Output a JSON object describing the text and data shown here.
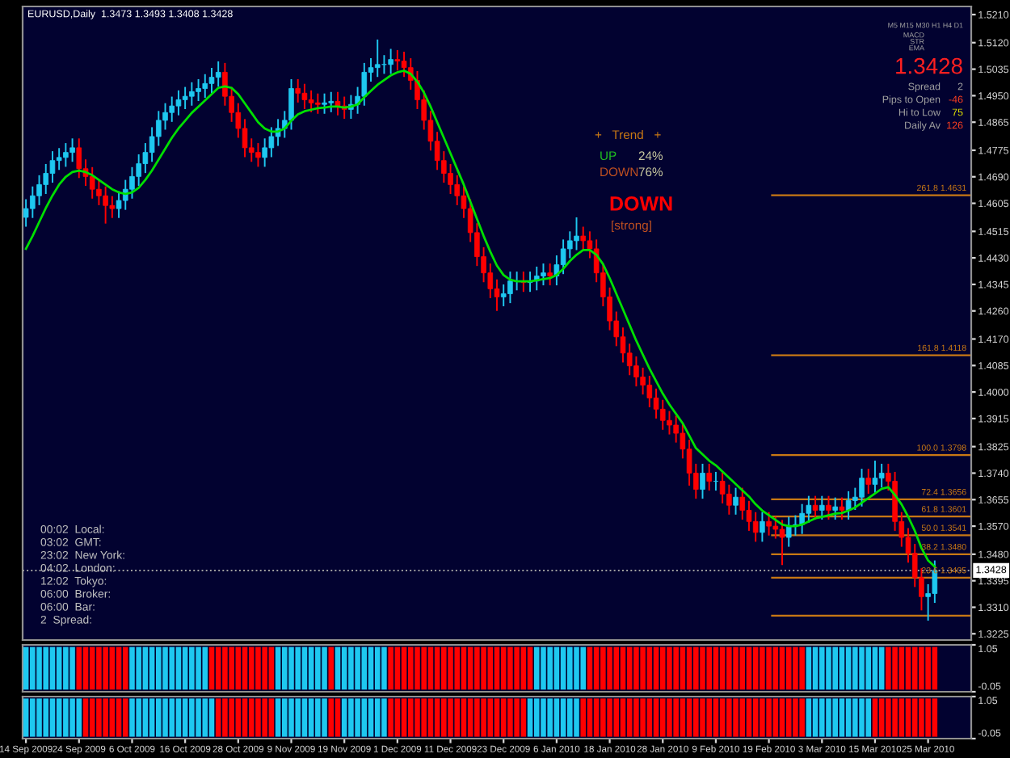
{
  "chart_data": [
    {
      "type": "candlestick",
      "tick_labels": "y",
      "colors": [
        "#1ec8f0",
        "#1ec8f0",
        "#1ec8f0",
        "#1ec8f0",
        "#1ec8f0",
        "#1ec8f0",
        "#1ec8f0",
        "#1ec8f0",
        "#ff0000",
        "#ff0000",
        "#ff0000",
        "#ff0000",
        "#ff0000",
        "#ff0000",
        "#1ec8f0",
        "#1ec8f0",
        "#1ec8f0",
        "#1ec8f0",
        "#1ec8f0",
        "#1ec8f0",
        "#1ec8f0",
        "#1ec8f0",
        "#1ec8f0",
        "#1ec8f0",
        "#1ec8f0",
        "#1ec8f0",
        "#1ec8f0",
        "#1ec8f0",
        "#1ec8f0",
        "#1ec8f0",
        "#ff0000",
        "#ff0000",
        "#ff0000",
        "#ff0000",
        "#ff0000",
        "#ff0000",
        "#1ec8f0",
        "#1ec8f0",
        "#1ec8f0",
        "#1ec8f0",
        "#1ec8f0",
        "#ff0000",
        "#ff0000",
        "#ff0000",
        "#ff0000",
        "#1ec8f0",
        "#1ec8f0",
        "#ff0000",
        "#ff0000",
        "#1ec8f0",
        "#1ec8f0",
        "#1ec8f0",
        "#1ec8f0",
        "#1ec8f0",
        "#1ec8f0",
        "#1ec8f0",
        "#ff0000",
        "#ff0000",
        "#ff0000",
        "#ff0000",
        "#ff0000",
        "#ff0000",
        "#ff0000",
        "#ff0000",
        "#ff0000",
        "#ff0000",
        "#ff0000",
        "#ff0000",
        "#ff0000",
        "#ff0000",
        "#ff0000",
        "#ff0000",
        "#1ec8f0",
        "#1ec8f0",
        "#1ec8f0",
        "#ff0000",
        "#1ec8f0",
        "#1ec8f0",
        "#1ec8f0",
        "#ff0000",
        "#1ec8f0",
        "#1ec8f0",
        "#1ec8f0",
        "#1ec8f0",
        "#ff0000",
        "#ff0000",
        "#ff0000",
        "#ff0000",
        "#ff0000",
        "#ff0000",
        "#ff0000",
        "#ff0000",
        "#ff0000",
        "#ff0000",
        "#ff0000",
        "#ff0000",
        "#ff0000",
        "#ff0000",
        "#ff0000",
        "#ff0000",
        "#ff0000",
        "#ff0000",
        "#1ec8f0",
        "#ff0000",
        "#1ec8f0",
        "#ff0000",
        "#ff0000",
        "#1ec8f0",
        "#ff0000",
        "#ff0000",
        "#ff0000",
        "#1ec8f0",
        "#ff0000",
        "#ff0000",
        "#ff0000",
        "#1ec8f0",
        "#1ec8f0",
        "#1ec8f0",
        "#1ec8f0",
        "#ff0000",
        "#1ec8f0",
        "#ff0000",
        "#1ec8f0",
        "#ff0000",
        "#1ec8f0",
        "#1ec8f0",
        "#1ec8f0",
        "#ff0000",
        "#1ec8f0",
        "#1ec8f0",
        "#ff0000",
        "#ff0000",
        "#ff0000",
        "#ff0000",
        "#ff0000",
        "#ff0000",
        "#1ec8f0",
        "#1ec8f0"
      ],
      "ohlc": [
        [
          1.456,
          1.4618,
          1.453,
          1.4588
        ],
        [
          1.4588,
          1.4659,
          1.4558,
          1.4629
        ],
        [
          1.4629,
          1.4695,
          1.4599,
          1.4665
        ],
        [
          1.4665,
          1.4731,
          1.4635,
          1.4701
        ],
        [
          1.4701,
          1.4772,
          1.4671,
          1.4742
        ],
        [
          1.4742,
          1.4782,
          1.4712,
          1.4752
        ],
        [
          1.4752,
          1.4798,
          1.4722,
          1.4768
        ],
        [
          1.4768,
          1.4813,
          1.4738,
          1.4783
        ],
        [
          1.4783,
          1.4813,
          1.4686,
          1.4716
        ],
        [
          1.4716,
          1.4746,
          1.4661,
          1.4691
        ],
        [
          1.4691,
          1.4721,
          1.462,
          1.465
        ],
        [
          1.465,
          1.468,
          1.4599,
          1.4629
        ],
        [
          1.4629,
          1.4659,
          1.454,
          1.4598
        ],
        [
          1.4598,
          1.4628,
          1.4558,
          1.4588
        ],
        [
          1.4588,
          1.4644,
          1.4558,
          1.4614
        ],
        [
          1.4614,
          1.468,
          1.4584,
          1.465
        ],
        [
          1.465,
          1.4721,
          1.462,
          1.4691
        ],
        [
          1.4691,
          1.4762,
          1.4661,
          1.4732
        ],
        [
          1.4732,
          1.4798,
          1.4702,
          1.4768
        ],
        [
          1.4768,
          1.4849,
          1.4738,
          1.4819
        ],
        [
          1.4819,
          1.4901,
          1.4789,
          1.4871
        ],
        [
          1.4871,
          1.4926,
          1.4841,
          1.4896
        ],
        [
          1.4896,
          1.4947,
          1.4866,
          1.4917
        ],
        [
          1.4917,
          1.4967,
          1.4887,
          1.4937
        ],
        [
          1.4937,
          1.4978,
          1.4907,
          1.4948
        ],
        [
          1.4948,
          1.4993,
          1.4918,
          1.4963
        ],
        [
          1.4963,
          1.5003,
          1.4933,
          1.4973
        ],
        [
          1.4973,
          1.5019,
          1.4943,
          1.4989
        ],
        [
          1.4989,
          1.5039,
          1.4959,
          1.5009
        ],
        [
          1.5009,
          1.506,
          1.4979,
          1.5025
        ],
        [
          1.5025,
          1.5055,
          1.4918,
          1.4948
        ],
        [
          1.4948,
          1.4978,
          1.4866,
          1.4896
        ],
        [
          1.4896,
          1.4926,
          1.4815,
          1.4845
        ],
        [
          1.4845,
          1.4875,
          1.4753,
          1.4783
        ],
        [
          1.4783,
          1.4813,
          1.4738,
          1.4768
        ],
        [
          1.4768,
          1.4798,
          1.4722,
          1.4752
        ],
        [
          1.4752,
          1.4813,
          1.4722,
          1.4783
        ],
        [
          1.4783,
          1.4849,
          1.4753,
          1.4819
        ],
        [
          1.4819,
          1.4875,
          1.4789,
          1.4845
        ],
        [
          1.4845,
          1.4901,
          1.4815,
          1.4871
        ],
        [
          1.4871,
          1.5003,
          1.4841,
          1.4973
        ],
        [
          1.4973,
          1.5003,
          1.4928,
          1.4958
        ],
        [
          1.4958,
          1.4988,
          1.4907,
          1.4937
        ],
        [
          1.4937,
          1.4967,
          1.4897,
          1.4927
        ],
        [
          1.4927,
          1.4957,
          1.4892,
          1.4922
        ],
        [
          1.4922,
          1.4957,
          1.4892,
          1.4927
        ],
        [
          1.4927,
          1.4962,
          1.4897,
          1.4932
        ],
        [
          1.4932,
          1.4962,
          1.4887,
          1.4917
        ],
        [
          1.4917,
          1.4947,
          1.4876,
          1.4906
        ],
        [
          1.4906,
          1.4952,
          1.4876,
          1.4922
        ],
        [
          1.4922,
          1.4978,
          1.4892,
          1.4948
        ],
        [
          1.4948,
          1.5055,
          1.4918,
          1.5025
        ],
        [
          1.5025,
          1.507,
          1.4995,
          1.504
        ],
        [
          1.504,
          1.513,
          1.501,
          1.505
        ],
        [
          1.505,
          1.508,
          1.502,
          1.505
        ],
        [
          1.505,
          1.51,
          1.502,
          1.5066
        ],
        [
          1.5066,
          1.5096,
          1.5031,
          1.5061
        ],
        [
          1.5061,
          1.5091,
          1.501,
          1.504
        ],
        [
          1.504,
          1.507,
          1.4969,
          1.4999
        ],
        [
          1.4999,
          1.5029,
          1.4907,
          1.4937
        ],
        [
          1.4937,
          1.4967,
          1.4841,
          1.4871
        ],
        [
          1.4871,
          1.4901,
          1.4774,
          1.4804
        ],
        [
          1.4804,
          1.4834,
          1.4712,
          1.4742
        ],
        [
          1.4742,
          1.4772,
          1.4671,
          1.4701
        ],
        [
          1.4701,
          1.4731,
          1.4635,
          1.4665
        ],
        [
          1.4665,
          1.4695,
          1.4599,
          1.4629
        ],
        [
          1.4629,
          1.4659,
          1.4558,
          1.4588
        ],
        [
          1.4588,
          1.4618,
          1.4481,
          1.4511
        ],
        [
          1.4511,
          1.4541,
          1.4404,
          1.4434
        ],
        [
          1.4434,
          1.4464,
          1.4352,
          1.4382
        ],
        [
          1.4382,
          1.4412,
          1.4301,
          1.4331
        ],
        [
          1.4331,
          1.4361,
          1.426,
          1.4305
        ],
        [
          1.4305,
          1.4345,
          1.4275,
          1.4315
        ],
        [
          1.4315,
          1.4386,
          1.4285,
          1.4356
        ],
        [
          1.4356,
          1.4386,
          1.4326,
          1.4356
        ],
        [
          1.4356,
          1.4386,
          1.4321,
          1.4351
        ],
        [
          1.4351,
          1.4386,
          1.4321,
          1.4356
        ],
        [
          1.4356,
          1.4402,
          1.4326,
          1.4372
        ],
        [
          1.4372,
          1.4412,
          1.4342,
          1.4382
        ],
        [
          1.4382,
          1.4412,
          1.4342,
          1.4372
        ],
        [
          1.4372,
          1.4438,
          1.4342,
          1.4408
        ],
        [
          1.4408,
          1.4489,
          1.4378,
          1.4459
        ],
        [
          1.4459,
          1.4515,
          1.4429,
          1.4485
        ],
        [
          1.4485,
          1.456,
          1.4455,
          1.45
        ],
        [
          1.45,
          1.453,
          1.4455,
          1.4485
        ],
        [
          1.4485,
          1.4515,
          1.4429,
          1.4459
        ],
        [
          1.4459,
          1.4489,
          1.4352,
          1.4382
        ],
        [
          1.4382,
          1.4412,
          1.4275,
          1.4305
        ],
        [
          1.4305,
          1.4335,
          1.4198,
          1.4228
        ],
        [
          1.4228,
          1.4258,
          1.4147,
          1.4177
        ],
        [
          1.4177,
          1.4207,
          1.4095,
          1.4125
        ],
        [
          1.4125,
          1.4155,
          1.4054,
          1.4084
        ],
        [
          1.4084,
          1.4114,
          1.4018,
          1.4048
        ],
        [
          1.4048,
          1.4078,
          1.3992,
          1.4022
        ],
        [
          1.4022,
          1.4052,
          1.3951,
          1.3981
        ],
        [
          1.3981,
          1.4011,
          1.3915,
          1.3945
        ],
        [
          1.3945,
          1.3975,
          1.3879,
          1.3909
        ],
        [
          1.3909,
          1.3939,
          1.3864,
          1.3894
        ],
        [
          1.3894,
          1.3924,
          1.3838,
          1.3868
        ],
        [
          1.3868,
          1.3898,
          1.3787,
          1.3817
        ],
        [
          1.3817,
          1.3847,
          1.37,
          1.374
        ],
        [
          1.374,
          1.377,
          1.3658,
          1.3688
        ],
        [
          1.3688,
          1.377,
          1.3658,
          1.374
        ],
        [
          1.374,
          1.377,
          1.3684,
          1.3714
        ],
        [
          1.3714,
          1.3744,
          1.3684,
          1.3714
        ],
        [
          1.3714,
          1.3744,
          1.3643,
          1.3673
        ],
        [
          1.3673,
          1.3703,
          1.3607,
          1.3637
        ],
        [
          1.3637,
          1.3693,
          1.3607,
          1.3663
        ],
        [
          1.3663,
          1.3693,
          1.3591,
          1.3621
        ],
        [
          1.3621,
          1.3651,
          1.3555,
          1.3585
        ],
        [
          1.3585,
          1.3615,
          1.352,
          1.355
        ],
        [
          1.355,
          1.3615,
          1.352,
          1.3585
        ],
        [
          1.3585,
          1.3615,
          1.354,
          1.357
        ],
        [
          1.357,
          1.36,
          1.353,
          1.356
        ],
        [
          1.356,
          1.359,
          1.3445,
          1.3534
        ],
        [
          1.3534,
          1.36,
          1.3504,
          1.357
        ],
        [
          1.357,
          1.3605,
          1.354,
          1.3575
        ],
        [
          1.3575,
          1.3641,
          1.3545,
          1.3611
        ],
        [
          1.3611,
          1.3667,
          1.3581,
          1.3637
        ],
        [
          1.3637,
          1.3667,
          1.3591,
          1.3621
        ],
        [
          1.3621,
          1.3667,
          1.3591,
          1.3637
        ],
        [
          1.3637,
          1.3667,
          1.3591,
          1.3621
        ],
        [
          1.3621,
          1.3662,
          1.3591,
          1.3632
        ],
        [
          1.3632,
          1.3662,
          1.3591,
          1.3621
        ],
        [
          1.3621,
          1.3682,
          1.3591,
          1.3652
        ],
        [
          1.3652,
          1.3693,
          1.3622,
          1.3663
        ],
        [
          1.3663,
          1.3754,
          1.3633,
          1.3724
        ],
        [
          1.3724,
          1.3754,
          1.3674,
          1.3704
        ],
        [
          1.3704,
          1.378,
          1.3674,
          1.3724
        ],
        [
          1.3724,
          1.377,
          1.3694,
          1.374
        ],
        [
          1.374,
          1.377,
          1.3684,
          1.3714
        ],
        [
          1.3714,
          1.3744,
          1.3555,
          1.3585
        ],
        [
          1.3585,
          1.3615,
          1.3504,
          1.3534
        ],
        [
          1.3534,
          1.3564,
          1.3453,
          1.3483
        ],
        [
          1.3483,
          1.3513,
          1.3375,
          1.3405
        ],
        [
          1.3405,
          1.3435,
          1.33,
          1.3344
        ],
        [
          1.3344,
          1.3384,
          1.3267,
          1.3354
        ],
        [
          1.3354,
          1.346,
          1.3324,
          1.3428
        ]
      ],
      "series": [
        {
          "type": "line",
          "color": "#00e000",
          "values": [
            1.4459,
            1.45,
            1.4545,
            1.459,
            1.463,
            1.4665,
            1.469,
            1.4705,
            1.471,
            1.4705,
            1.4695,
            1.468,
            1.4665,
            1.465,
            1.464,
            1.4635,
            1.464,
            1.4655,
            1.468,
            1.471,
            1.4745,
            1.478,
            1.4815,
            1.4845,
            1.487,
            1.4895,
            1.4915,
            1.4935,
            1.4955,
            1.4975,
            1.498,
            1.4975,
            1.4955,
            1.4925,
            1.4895,
            1.4865,
            1.4845,
            1.4835,
            1.4835,
            1.4845,
            1.487,
            1.489,
            1.49,
            1.4905,
            1.491,
            1.4912,
            1.4915,
            1.4915,
            1.4912,
            1.4915,
            1.4922,
            1.4945,
            1.4965,
            1.4985,
            1.5,
            1.5015,
            1.5025,
            1.503,
            1.502,
            1.4995,
            1.496,
            1.4915,
            1.4865,
            1.4815,
            1.4765,
            1.4715,
            1.4665,
            1.461,
            1.4555,
            1.45,
            1.445,
            1.4405,
            1.4375,
            1.436,
            1.4355,
            1.4355,
            1.4355,
            1.4358,
            1.4362,
            1.4365,
            1.4375,
            1.4395,
            1.442,
            1.444,
            1.4455,
            1.4455,
            1.444,
            1.441,
            1.4365,
            1.4315,
            1.4265,
            1.4215,
            1.4165,
            1.412,
            1.4075,
            1.4035,
            1.3995,
            1.396,
            1.393,
            1.39,
            1.386,
            1.382,
            1.38,
            1.378,
            1.3765,
            1.3745,
            1.3725,
            1.3705,
            1.3685,
            1.3665,
            1.364,
            1.362,
            1.3605,
            1.359,
            1.3575,
            1.357,
            1.357,
            1.3575,
            1.3585,
            1.3595,
            1.36,
            1.3605,
            1.361,
            1.3612,
            1.362,
            1.363,
            1.3645,
            1.366,
            1.3675,
            1.369,
            1.3695,
            1.367,
            1.364,
            1.36,
            1.3555,
            1.35,
            1.346,
            1.344
          ]
        }
      ],
      "ylim": [
        1.3205,
        1.5236
      ],
      "yticks": [
        {
          "value": 1.521,
          "label": "1.5210"
        },
        {
          "value": 1.512,
          "label": "1.5120"
        },
        1.5035,
        {
          "value": 1.495,
          "label": "1.4950"
        },
        1.4865,
        1.4775,
        {
          "value": 1.469,
          "label": "1.4690"
        },
        1.4605,
        1.4515,
        {
          "value": 1.443,
          "label": "1.4430"
        },
        1.4345,
        {
          "value": 1.426,
          "label": "1.4260"
        },
        {
          "value": 1.417,
          "label": "1.4170"
        },
        1.4085,
        {
          "value": 1.4,
          "label": "1.4000"
        },
        1.3915,
        1.3825,
        {
          "value": 1.374,
          "label": "1.3740"
        },
        1.3655,
        {
          "value": 1.357,
          "label": "1.3570"
        },
        {
          "value": 1.348,
          "label": "1.3480"
        },
        1.3395,
        {
          "value": 1.331,
          "label": "1.3310"
        },
        1.3225
      ],
      "ref_lines": [
        {
          "axis": "y",
          "value": 1.4631,
          "label": "261.8 1.4631",
          "color": "#c87814"
        },
        {
          "axis": "y",
          "value": 1.4118,
          "label": "161.8 1.4118",
          "color": "#c87814"
        },
        {
          "axis": "y",
          "value": 1.3798,
          "label": "100.0 1.3798",
          "color": "#c87814"
        },
        {
          "axis": "y",
          "value": 1.3656,
          "label": "72.4 1.3656",
          "color": "#c87814"
        },
        {
          "axis": "y",
          "value": 1.3601,
          "label": "61.8 1.3601",
          "color": "#c87814"
        },
        {
          "axis": "y",
          "value": 1.3541,
          "label": "50.0 1.3541",
          "color": "#c87814"
        },
        {
          "axis": "y",
          "value": 1.348,
          "label": "38.2 1.3480",
          "color": "#c87814"
        },
        {
          "axis": "y",
          "value": 1.3405,
          "label": "23.6 1.3405",
          "color": "#c87814"
        },
        {
          "axis": "y",
          "value": 1.3283,
          "color": "#c87814"
        },
        {
          "axis": "y",
          "value": 1.3428,
          "label": "1.3428",
          "color": "#a0a0a0",
          "line_style": "dotted"
        }
      ],
      "annotations": [
        "EURUSD,Daily  1.3473 1.3493 1.3408 1.3428",
        "+   Trend   +",
        "UP",
        "24%",
        "DOWN",
        "76%",
        "DOWN",
        "[strong]",
        "M5 M15 M30 H1 H4 D1",
        "MACD",
        "STR",
        "EMA",
        "1.3428",
        "Spread",
        "2",
        "Pips to Open",
        "-46",
        "Hi to Low",
        "75",
        "Daily Av",
        "126",
        "00:02  Local:",
        "03:02  GMT:",
        "23:02  New York:",
        "04:02  London:",
        "12:02  Tokyo:",
        "06:00  Broker:",
        "06:00  Bar:",
        "2  Spread:"
      ]
    },
    {
      "type": "bar",
      "tick_labels": "y",
      "ylim": [
        -0.05,
        1.05
      ],
      "yticks": [
        1.05,
        -0.05
      ],
      "values": [
        1,
        1,
        1,
        1,
        1,
        1,
        1,
        1,
        1,
        1,
        1,
        1,
        1,
        1,
        1,
        1,
        1,
        1,
        1,
        1,
        1,
        1,
        1,
        1,
        1,
        1,
        1,
        1,
        1,
        1,
        1,
        1,
        1,
        1,
        1,
        1,
        1,
        1,
        1,
        1,
        1,
        1,
        1,
        1,
        1,
        1,
        1,
        1,
        1,
        1,
        1,
        1,
        1,
        1,
        1,
        1,
        1,
        1,
        1,
        1,
        1,
        1,
        1,
        1,
        1,
        1,
        1,
        1,
        1,
        1,
        1,
        1,
        1,
        1,
        1,
        1,
        1,
        1,
        1,
        1,
        1,
        1,
        1,
        1,
        1,
        1,
        1,
        1,
        1,
        1,
        1,
        1,
        1,
        1,
        1,
        1,
        1,
        1,
        1,
        1,
        1,
        1,
        1,
        1,
        1,
        1,
        1,
        1,
        1,
        1,
        1,
        1,
        1,
        1,
        1,
        1,
        1,
        1,
        1,
        1,
        1,
        1,
        1,
        1,
        1,
        1,
        1,
        1,
        1,
        1,
        1,
        1,
        1,
        1,
        1,
        1,
        1,
        1
      ],
      "colors": [
        "#1ec8f0",
        "#1ec8f0",
        "#1ec8f0",
        "#1ec8f0",
        "#1ec8f0",
        "#1ec8f0",
        "#1ec8f0",
        "#1ec8f0",
        "#ff0000",
        "#ff0000",
        "#ff0000",
        "#ff0000",
        "#ff0000",
        "#ff0000",
        "#ff0000",
        "#ff0000",
        "#1ec8f0",
        "#1ec8f0",
        "#1ec8f0",
        "#1ec8f0",
        "#1ec8f0",
        "#1ec8f0",
        "#1ec8f0",
        "#1ec8f0",
        "#1ec8f0",
        "#1ec8f0",
        "#1ec8f0",
        "#1ec8f0",
        "#ff0000",
        "#ff0000",
        "#ff0000",
        "#ff0000",
        "#ff0000",
        "#ff0000",
        "#ff0000",
        "#ff0000",
        "#ff0000",
        "#ff0000",
        "#1ec8f0",
        "#1ec8f0",
        "#1ec8f0",
        "#1ec8f0",
        "#1ec8f0",
        "#1ec8f0",
        "#1ec8f0",
        "#1ec8f0",
        "#ff0000",
        "#1ec8f0",
        "#1ec8f0",
        "#1ec8f0",
        "#1ec8f0",
        "#1ec8f0",
        "#1ec8f0",
        "#1ec8f0",
        "#1ec8f0",
        "#ff0000",
        "#ff0000",
        "#ff0000",
        "#ff0000",
        "#ff0000",
        "#ff0000",
        "#ff0000",
        "#ff0000",
        "#ff0000",
        "#ff0000",
        "#ff0000",
        "#ff0000",
        "#ff0000",
        "#ff0000",
        "#ff0000",
        "#ff0000",
        "#ff0000",
        "#ff0000",
        "#ff0000",
        "#ff0000",
        "#ff0000",
        "#ff0000",
        "#1ec8f0",
        "#1ec8f0",
        "#1ec8f0",
        "#1ec8f0",
        "#1ec8f0",
        "#1ec8f0",
        "#1ec8f0",
        "#1ec8f0",
        "#ff0000",
        "#ff0000",
        "#ff0000",
        "#ff0000",
        "#ff0000",
        "#ff0000",
        "#ff0000",
        "#ff0000",
        "#ff0000",
        "#ff0000",
        "#ff0000",
        "#ff0000",
        "#ff0000",
        "#ff0000",
        "#ff0000",
        "#ff0000",
        "#ff0000",
        "#ff0000",
        "#ff0000",
        "#ff0000",
        "#ff0000",
        "#ff0000",
        "#ff0000",
        "#ff0000",
        "#ff0000",
        "#ff0000",
        "#ff0000",
        "#ff0000",
        "#ff0000",
        "#ff0000",
        "#ff0000",
        "#ff0000",
        "#ff0000",
        "#1ec8f0",
        "#1ec8f0",
        "#1ec8f0",
        "#1ec8f0",
        "#1ec8f0",
        "#1ec8f0",
        "#1ec8f0",
        "#1ec8f0",
        "#1ec8f0",
        "#1ec8f0",
        "#1ec8f0",
        "#1ec8f0",
        "#ff0000",
        "#ff0000",
        "#ff0000",
        "#ff0000",
        "#ff0000",
        "#ff0000",
        "#ff0000",
        "#ff0000"
      ]
    },
    {
      "type": "bar",
      "ylim": [
        -0.05,
        1.05
      ],
      "yticks": [
        1.05,
        -0.05
      ],
      "categories": [
        "14 Sep 2009",
        null,
        null,
        null,
        null,
        null,
        null,
        null,
        "24 Sep 2009",
        null,
        null,
        null,
        null,
        null,
        null,
        null,
        "6 Oct 2009",
        null,
        null,
        null,
        null,
        null,
        null,
        null,
        "16 Oct 2009",
        null,
        null,
        null,
        null,
        null,
        null,
        null,
        "28 Oct 2009",
        null,
        null,
        null,
        null,
        null,
        null,
        null,
        "9 Nov 2009",
        null,
        null,
        null,
        null,
        null,
        null,
        null,
        "19 Nov 2009",
        null,
        null,
        null,
        null,
        null,
        null,
        null,
        "1 Dec 2009",
        null,
        null,
        null,
        null,
        null,
        null,
        null,
        "11 Dec 2009",
        null,
        null,
        null,
        null,
        null,
        null,
        null,
        "23 Dec 2009",
        null,
        null,
        null,
        null,
        null,
        null,
        null,
        "6 Jan 2010",
        null,
        null,
        null,
        null,
        null,
        null,
        null,
        "18 Jan 2010",
        null,
        null,
        null,
        null,
        null,
        null,
        null,
        "28 Jan 2010",
        null,
        null,
        null,
        null,
        null,
        null,
        null,
        "9 Feb 2010",
        null,
        null,
        null,
        null,
        null,
        null,
        null,
        "19 Feb 2010",
        null,
        null,
        null,
        null,
        null,
        null,
        null,
        "3 Mar 2010",
        null,
        null,
        null,
        null,
        null,
        null,
        null,
        "15 Mar 2010",
        null,
        null,
        null,
        null,
        null,
        null,
        null,
        "25 Mar 2010",
        null
      ],
      "values": [
        1,
        1,
        1,
        1,
        1,
        1,
        1,
        1,
        1,
        1,
        1,
        1,
        1,
        1,
        1,
        1,
        1,
        1,
        1,
        1,
        1,
        1,
        1,
        1,
        1,
        1,
        1,
        1,
        1,
        1,
        1,
        1,
        1,
        1,
        1,
        1,
        1,
        1,
        1,
        1,
        1,
        1,
        1,
        1,
        1,
        1,
        1,
        1,
        1,
        1,
        1,
        1,
        1,
        1,
        1,
        1,
        1,
        1,
        1,
        1,
        1,
        1,
        1,
        1,
        1,
        1,
        1,
        1,
        1,
        1,
        1,
        1,
        1,
        1,
        1,
        1,
        1,
        1,
        1,
        1,
        1,
        1,
        1,
        1,
        1,
        1,
        1,
        1,
        1,
        1,
        1,
        1,
        1,
        1,
        1,
        1,
        1,
        1,
        1,
        1,
        1,
        1,
        1,
        1,
        1,
        1,
        1,
        1,
        1,
        1,
        1,
        1,
        1,
        1,
        1,
        1,
        1,
        1,
        1,
        1,
        1,
        1,
        1,
        1,
        1,
        1,
        1,
        1,
        1,
        1,
        1,
        1,
        1,
        1,
        1,
        1,
        1,
        1
      ],
      "colors": [
        "#1ec8f0",
        "#1ec8f0",
        "#1ec8f0",
        "#1ec8f0",
        "#1ec8f0",
        "#1ec8f0",
        "#1ec8f0",
        "#1ec8f0",
        "#1ec8f0",
        "#ff0000",
        "#ff0000",
        "#ff0000",
        "#ff0000",
        "#ff0000",
        "#ff0000",
        "#ff0000",
        "#1ec8f0",
        "#1ec8f0",
        "#1ec8f0",
        "#1ec8f0",
        "#1ec8f0",
        "#1ec8f0",
        "#1ec8f0",
        "#1ec8f0",
        "#1ec8f0",
        "#1ec8f0",
        "#1ec8f0",
        "#1ec8f0",
        "#1ec8f0",
        "#ff0000",
        "#ff0000",
        "#ff0000",
        "#ff0000",
        "#ff0000",
        "#ff0000",
        "#ff0000",
        "#ff0000",
        "#ff0000",
        "#1ec8f0",
        "#1ec8f0",
        "#1ec8f0",
        "#1ec8f0",
        "#1ec8f0",
        "#1ec8f0",
        "#1ec8f0",
        "#1ec8f0",
        "#ff0000",
        "#ff0000",
        "#1ec8f0",
        "#1ec8f0",
        "#1ec8f0",
        "#1ec8f0",
        "#1ec8f0",
        "#1ec8f0",
        "#1ec8f0",
        "#ff0000",
        "#ff0000",
        "#ff0000",
        "#ff0000",
        "#ff0000",
        "#ff0000",
        "#ff0000",
        "#ff0000",
        "#ff0000",
        "#ff0000",
        "#ff0000",
        "#ff0000",
        "#ff0000",
        "#ff0000",
        "#ff0000",
        "#ff0000",
        "#ff0000",
        "#ff0000",
        "#ff0000",
        "#ff0000",
        "#ff0000",
        "#1ec8f0",
        "#1ec8f0",
        "#1ec8f0",
        "#1ec8f0",
        "#1ec8f0",
        "#1ec8f0",
        "#1ec8f0",
        "#1ec8f0",
        "#ff0000",
        "#ff0000",
        "#ff0000",
        "#ff0000",
        "#ff0000",
        "#ff0000",
        "#ff0000",
        "#ff0000",
        "#ff0000",
        "#ff0000",
        "#ff0000",
        "#ff0000",
        "#ff0000",
        "#ff0000",
        "#ff0000",
        "#ff0000",
        "#ff0000",
        "#ff0000",
        "#ff0000",
        "#ff0000",
        "#ff0000",
        "#ff0000",
        "#ff0000",
        "#ff0000",
        "#ff0000",
        "#ff0000",
        "#ff0000",
        "#ff0000",
        "#ff0000",
        "#ff0000",
        "#ff0000",
        "#ff0000",
        "#ff0000",
        "#ff0000",
        "#1ec8f0",
        "#1ec8f0",
        "#1ec8f0",
        "#1ec8f0",
        "#1ec8f0",
        "#1ec8f0",
        "#1ec8f0",
        "#1ec8f0",
        "#1ec8f0",
        "#1ec8f0",
        "#ff0000",
        "#ff0000",
        "#ff0000",
        "#ff0000",
        "#ff0000",
        "#ff0000",
        "#ff0000",
        "#ff0000",
        "#ff0000",
        "#ff0000"
      ]
    }
  ]
}
